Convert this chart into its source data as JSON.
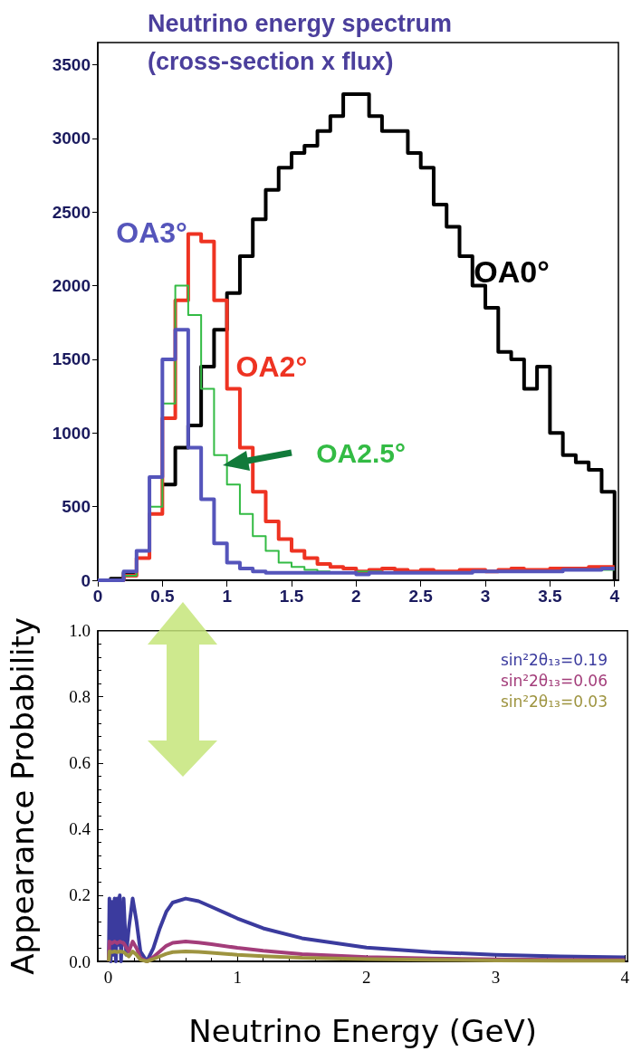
{
  "chart_data": [
    {
      "type": "step",
      "title": "Neutrino energy spectrum (cross-section x flux)",
      "x": [
        0,
        0.1,
        0.2,
        0.3,
        0.4,
        0.5,
        0.6,
        0.7,
        0.8,
        0.9,
        1.0,
        1.1,
        1.2,
        1.3,
        1.4,
        1.5,
        1.6,
        1.7,
        1.8,
        1.9,
        2.0,
        2.1,
        2.2,
        2.3,
        2.4,
        2.5,
        2.6,
        2.7,
        2.8,
        2.9,
        3.0,
        3.1,
        3.2,
        3.3,
        3.4,
        3.5,
        3.6,
        3.7,
        3.8,
        3.9,
        4.0
      ],
      "series": [
        {
          "name": "OA0°",
          "color": "#000000",
          "values": [
            0,
            10,
            50,
            null,
            null,
            650,
            900,
            1050,
            1450,
            1700,
            1950,
            2200,
            2450,
            2650,
            2800,
            2900,
            2950,
            3050,
            3150,
            3300,
            3300,
            3150,
            3050,
            3050,
            2900,
            2800,
            2550,
            2400,
            2200,
            2000,
            1850,
            1550,
            1500,
            1300,
            1450,
            1000,
            850,
            800,
            750,
            600,
            0
          ]
        },
        {
          "name": "OA2°",
          "color": "#ee3322",
          "values": [
            0,
            0,
            30,
            150,
            450,
            1100,
            1900,
            2350,
            2300,
            1900,
            1300,
            900,
            600,
            400,
            280,
            200,
            150,
            110,
            90,
            80,
            60,
            70,
            80,
            70,
            60,
            70,
            60,
            60,
            70,
            70,
            60,
            70,
            80,
            70,
            70,
            80,
            80,
            80,
            90,
            90,
            90
          ]
        },
        {
          "name": "OA2.5°",
          "color": "#33bb44",
          "values": [
            null,
            null,
            30,
            200,
            500,
            1200,
            2000,
            1800,
            1300,
            850,
            650,
            450,
            300,
            200,
            120,
            90,
            70,
            60,
            null,
            null,
            60,
            60,
            null,
            null,
            null,
            null,
            null,
            null,
            null,
            null,
            null,
            null,
            null,
            null,
            null,
            null,
            null,
            null,
            null,
            70,
            70
          ]
        },
        {
          "name": "OA3°",
          "color": "#5555bb",
          "values": [
            0,
            0,
            60,
            200,
            700,
            1500,
            1700,
            900,
            550,
            250,
            120,
            80,
            60,
            50,
            50,
            50,
            50,
            50,
            50,
            50,
            40,
            50,
            50,
            50,
            50,
            50,
            50,
            50,
            50,
            60,
            60,
            60,
            60,
            60,
            60,
            60,
            70,
            70,
            70,
            80,
            80
          ]
        }
      ],
      "xlim": [
        0,
        4.03
      ],
      "xticks": [
        0,
        0.5,
        1,
        1.5,
        2,
        2.5,
        3,
        3.5,
        4
      ],
      "ylim": [
        0,
        3650
      ],
      "yticks": [
        0,
        500,
        1000,
        1500,
        2000,
        2500,
        3000,
        3500
      ],
      "grid": false,
      "legend": false,
      "line_style": "solid"
    },
    {
      "type": "line",
      "xlabel": "Neutrino Energy (GeV)",
      "ylabel": "Appearance Probability",
      "series": [
        {
          "name": "sin²2θ₁₃=0.19",
          "color": "#3b3b9e",
          "x": [
            0.005,
            0.01,
            0.02,
            0.03,
            0.04,
            0.05,
            0.06,
            0.07,
            0.08,
            0.09,
            0.1,
            0.12,
            0.14,
            0.16,
            0.19,
            0.22,
            0.25,
            0.3,
            0.35,
            0.4,
            0.45,
            0.5,
            0.6,
            0.7,
            0.8,
            1.0,
            1.2,
            1.5,
            2.0,
            2.5,
            3.0,
            3.5,
            4.0
          ],
          "values": [
            0,
            0.19,
            0,
            0.18,
            0.02,
            0.19,
            0,
            0.19,
            0.05,
            0.2,
            0,
            0.19,
            0.02,
            0.1,
            0.19,
            0.12,
            0.03,
            0,
            0.04,
            0.1,
            0.15,
            0.178,
            0.19,
            0.182,
            0.165,
            0.13,
            0.1,
            0.07,
            0.042,
            0.028,
            0.02,
            0.015,
            0.012
          ]
        },
        {
          "name": "sin²2θ₁₃=0.06",
          "color": "#a33d7a",
          "x": [
            0.005,
            0.01,
            0.03,
            0.05,
            0.07,
            0.09,
            0.12,
            0.16,
            0.19,
            0.22,
            0.25,
            0.3,
            0.35,
            0.4,
            0.45,
            0.5,
            0.6,
            0.7,
            0.8,
            1.0,
            1.2,
            1.5,
            2.0,
            2.5,
            3.0,
            3.5,
            4.0
          ],
          "values": [
            0,
            0.06,
            0.055,
            0.06,
            0.055,
            0.06,
            0.055,
            0.03,
            0.06,
            0.04,
            0.01,
            0,
            0.013,
            0.03,
            0.047,
            0.056,
            0.06,
            0.057,
            0.052,
            0.041,
            0.032,
            0.022,
            0.013,
            0.009,
            0.006,
            0.005,
            0.004
          ]
        },
        {
          "name": "sin²2θ₁₃=0.03",
          "color": "#9e9440",
          "x": [
            0.005,
            0.01,
            0.03,
            0.05,
            0.07,
            0.09,
            0.12,
            0.16,
            0.19,
            0.22,
            0.25,
            0.3,
            0.35,
            0.4,
            0.45,
            0.5,
            0.6,
            0.7,
            0.8,
            1.0,
            1.2,
            1.5,
            2.0,
            2.5,
            3.0,
            3.5,
            4.0
          ],
          "values": [
            0,
            0.03,
            0.028,
            0.03,
            0.028,
            0.03,
            0.028,
            0.015,
            0.03,
            0.02,
            0.005,
            0,
            0.007,
            0.015,
            0.023,
            0.028,
            0.03,
            0.029,
            0.026,
            0.02,
            0.016,
            0.011,
            0.007,
            0.005,
            0.003,
            0.002,
            0.002
          ]
        }
      ],
      "xlim": [
        -0.08,
        4.02
      ],
      "xticks": [
        0,
        1,
        2,
        3,
        4
      ],
      "ylim": [
        0,
        1
      ],
      "yticks": [
        {
          "value": 0,
          "label": "0.0"
        },
        {
          "value": 0.2,
          "label": "0.2"
        },
        {
          "value": 0.4,
          "label": "0.4"
        },
        {
          "value": 0.6,
          "label": "0.6"
        },
        {
          "value": 0.8,
          "label": "0.8"
        },
        {
          "value": 1,
          "label": "1.0"
        }
      ],
      "grid": false,
      "legend": "top right",
      "marker": "none",
      "line_style": "solid"
    }
  ]
}
